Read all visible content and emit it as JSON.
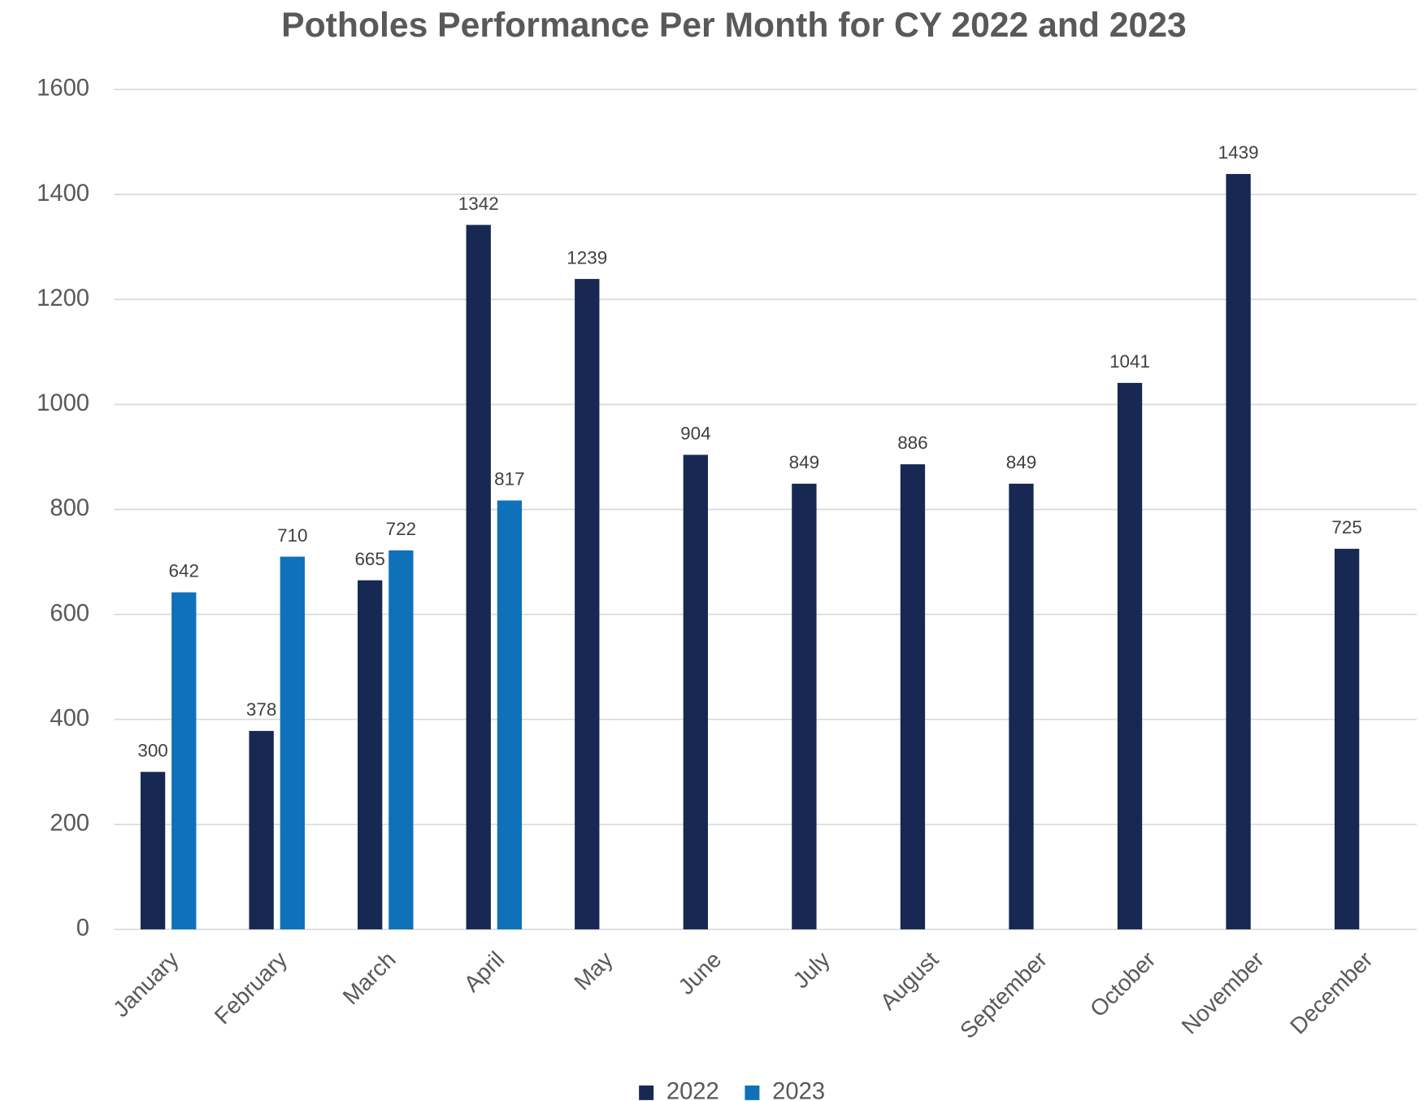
{
  "chart_data": {
    "type": "bar",
    "title": "Potholes Performance Per Month for CY 2022 and 2023",
    "categories": [
      "January",
      "February",
      "March",
      "April",
      "May",
      "June",
      "July",
      "August",
      "September",
      "October",
      "November",
      "December"
    ],
    "series": [
      {
        "name": "2022",
        "color": "#172853",
        "values": [
          300,
          378,
          665,
          1342,
          1239,
          904,
          849,
          886,
          849,
          1041,
          1439,
          725
        ]
      },
      {
        "name": "2023",
        "color": "#0f71ba",
        "values": [
          642,
          710,
          722,
          817,
          null,
          null,
          null,
          null,
          null,
          null,
          null,
          null
        ]
      }
    ],
    "ylim": [
      0,
      1600
    ],
    "yticks": [
      0,
      200,
      400,
      600,
      800,
      1000,
      1200,
      1400,
      1600
    ],
    "grid": true,
    "legend": "bottom"
  }
}
